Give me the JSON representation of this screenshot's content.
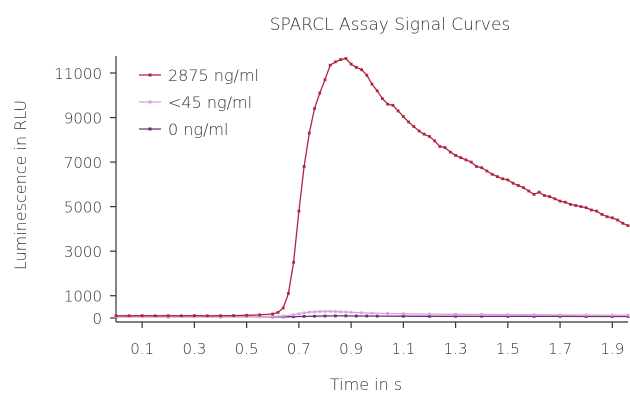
{
  "chart_data": {
    "type": "line",
    "title": "SPARCL Assay Signal Curves",
    "xlabel": "Time in s",
    "ylabel": "Luminescence in RLU",
    "xlim": [
      0.0,
      1.96
    ],
    "ylim": [
      0,
      11800
    ],
    "x_ticks": [
      "0.1",
      "0.3",
      "0.5",
      "0.7",
      "0.9",
      "1.1",
      "1.3",
      "1.5",
      "1.7",
      "1.9"
    ],
    "y_ticks": [
      "0",
      "1000",
      "3000",
      "5000",
      "7000",
      "9000",
      "11000"
    ],
    "grid": false,
    "legend_position": "top-left",
    "series": [
      {
        "name": "2875 ng/ml",
        "color": "#b0243f",
        "x": [
          0.0,
          0.05,
          0.1,
          0.15,
          0.2,
          0.25,
          0.3,
          0.35,
          0.4,
          0.45,
          0.5,
          0.55,
          0.6,
          0.62,
          0.64,
          0.66,
          0.68,
          0.7,
          0.72,
          0.74,
          0.76,
          0.78,
          0.8,
          0.82,
          0.84,
          0.86,
          0.88,
          0.9,
          0.92,
          0.94,
          0.96,
          0.98,
          1.0,
          1.02,
          1.04,
          1.06,
          1.08,
          1.1,
          1.12,
          1.14,
          1.16,
          1.18,
          1.2,
          1.22,
          1.24,
          1.26,
          1.28,
          1.3,
          1.32,
          1.34,
          1.36,
          1.38,
          1.4,
          1.42,
          1.44,
          1.46,
          1.48,
          1.5,
          1.52,
          1.54,
          1.56,
          1.58,
          1.6,
          1.62,
          1.64,
          1.66,
          1.68,
          1.7,
          1.72,
          1.74,
          1.76,
          1.78,
          1.8,
          1.82,
          1.84,
          1.86,
          1.88,
          1.9,
          1.92,
          1.94,
          1.96
        ],
        "values": [
          100,
          100,
          110,
          100,
          105,
          100,
          110,
          100,
          105,
          110,
          120,
          140,
          180,
          250,
          450,
          1100,
          2500,
          4800,
          6800,
          8300,
          9400,
          10100,
          10700,
          11350,
          11500,
          11600,
          11650,
          11400,
          11250,
          11150,
          10900,
          10500,
          10200,
          9850,
          9600,
          9550,
          9300,
          9050,
          8800,
          8600,
          8400,
          8250,
          8150,
          7950,
          7700,
          7650,
          7450,
          7300,
          7200,
          7100,
          7000,
          6800,
          6750,
          6600,
          6450,
          6350,
          6250,
          6200,
          6050,
          5950,
          5850,
          5700,
          5550,
          5650,
          5500,
          5450,
          5350,
          5250,
          5200,
          5100,
          5050,
          5000,
          4950,
          4850,
          4800,
          4650,
          4550,
          4500,
          4400,
          4250,
          4150
        ]
      },
      {
        "name": "<45 ng/ml",
        "color": "#d7a3d9",
        "x": [
          0.0,
          0.1,
          0.2,
          0.3,
          0.4,
          0.5,
          0.55,
          0.6,
          0.64,
          0.68,
          0.7,
          0.72,
          0.74,
          0.76,
          0.78,
          0.8,
          0.82,
          0.84,
          0.86,
          0.88,
          0.9,
          0.94,
          0.98,
          1.04,
          1.1,
          1.2,
          1.3,
          1.4,
          1.5,
          1.6,
          1.7,
          1.8,
          1.9,
          1.96
        ],
        "values": [
          60,
          60,
          60,
          60,
          60,
          60,
          60,
          70,
          90,
          140,
          190,
          230,
          260,
          280,
          290,
          295,
          300,
          290,
          280,
          270,
          255,
          235,
          215,
          200,
          190,
          175,
          165,
          160,
          150,
          145,
          140,
          135,
          130,
          130
        ]
      },
      {
        "name": "0 ng/ml",
        "color": "#6b2c78",
        "x": [
          0.0,
          0.2,
          0.4,
          0.6,
          0.64,
          0.68,
          0.72,
          0.76,
          0.8,
          0.84,
          0.88,
          0.92,
          0.96,
          1.0,
          1.1,
          1.2,
          1.3,
          1.4,
          1.5,
          1.6,
          1.7,
          1.8,
          1.9,
          1.96
        ],
        "values": [
          50,
          50,
          50,
          50,
          55,
          60,
          70,
          80,
          90,
          95,
          95,
          90,
          88,
          85,
          80,
          78,
          75,
          75,
          72,
          70,
          70,
          68,
          68,
          68
        ]
      }
    ]
  }
}
